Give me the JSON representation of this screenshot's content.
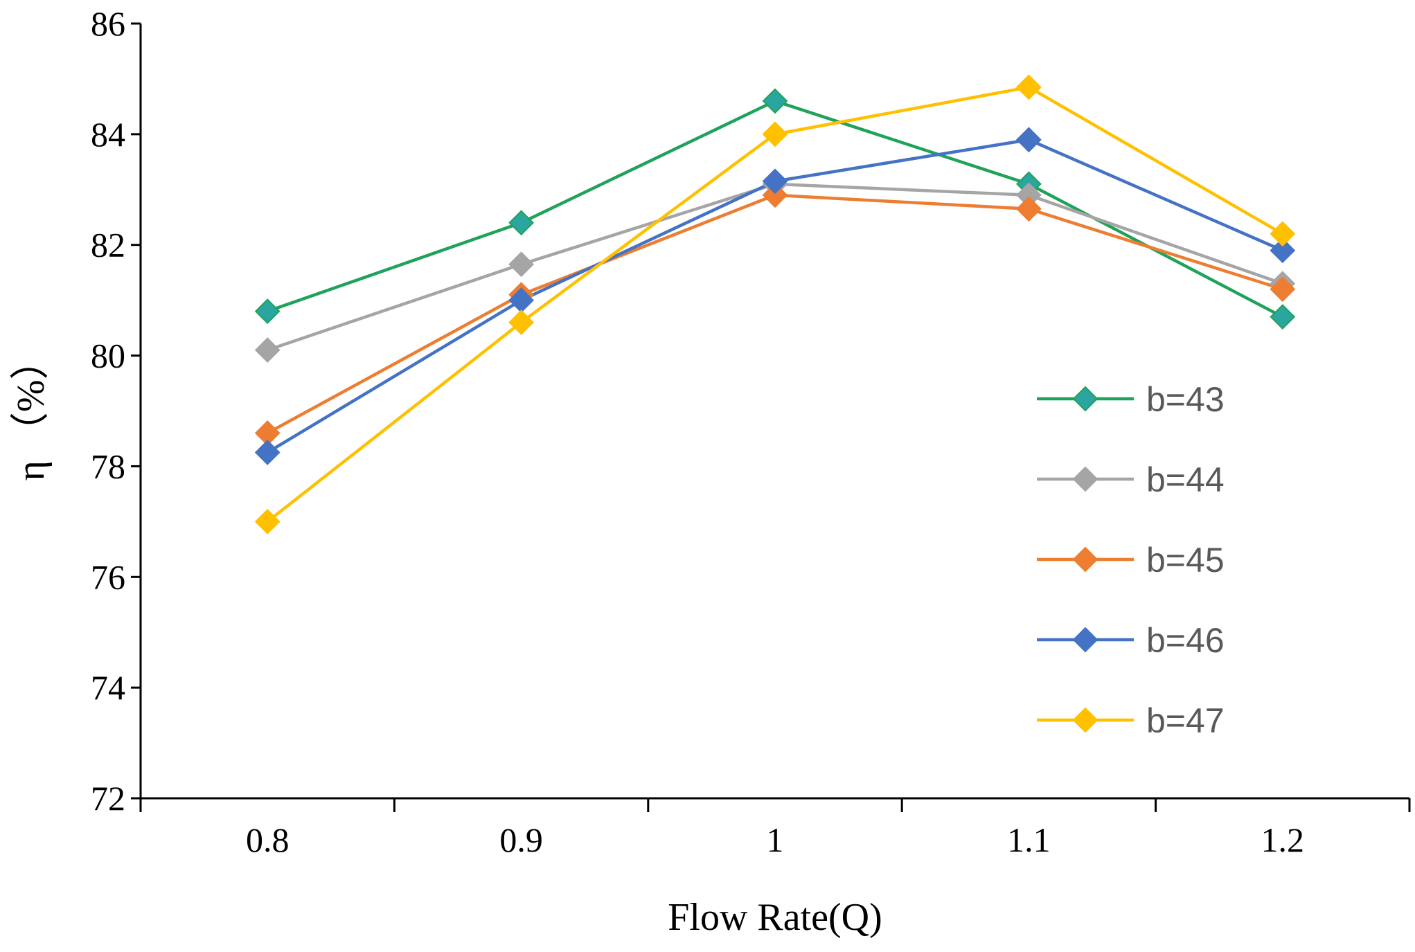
{
  "chart_data": {
    "type": "line",
    "title": "",
    "xlabel": "Flow Rate(Q)",
    "ylabel": "η （%）",
    "x": [
      0.8,
      0.9,
      1,
      1.1,
      1.2
    ],
    "x_tick_labels": [
      "0.8",
      "0.9",
      "1",
      "1.1",
      "1.2"
    ],
    "ylim": [
      72,
      86
    ],
    "y_ticks": [
      72,
      74,
      76,
      78,
      80,
      82,
      84,
      86
    ],
    "y_tick_labels": [
      "72",
      "74",
      "76",
      "78",
      "80",
      "82",
      "84",
      "86"
    ],
    "grid": false,
    "legend_position": "right",
    "marker": "diamond",
    "series": [
      {
        "name": "b=43",
        "color": "#1fa25a",
        "marker_color": "#2aa5a0",
        "values": [
          80.8,
          82.4,
          84.6,
          83.1,
          80.7
        ]
      },
      {
        "name": "b=44",
        "color": "#a5a5a5",
        "marker_color": "#a5a5a5",
        "values": [
          80.1,
          81.65,
          83.1,
          82.9,
          81.3
        ]
      },
      {
        "name": "b=45",
        "color": "#ed7d31",
        "marker_color": "#ed7d31",
        "values": [
          78.6,
          81.1,
          82.9,
          82.65,
          81.2
        ]
      },
      {
        "name": "b=46",
        "color": "#4472c4",
        "marker_color": "#4472c4",
        "values": [
          78.25,
          81.0,
          83.15,
          83.9,
          81.9
        ]
      },
      {
        "name": "b=47",
        "color": "#ffc000",
        "marker_color": "#ffc000",
        "values": [
          77.0,
          80.6,
          84.0,
          84.85,
          82.2
        ]
      }
    ]
  }
}
